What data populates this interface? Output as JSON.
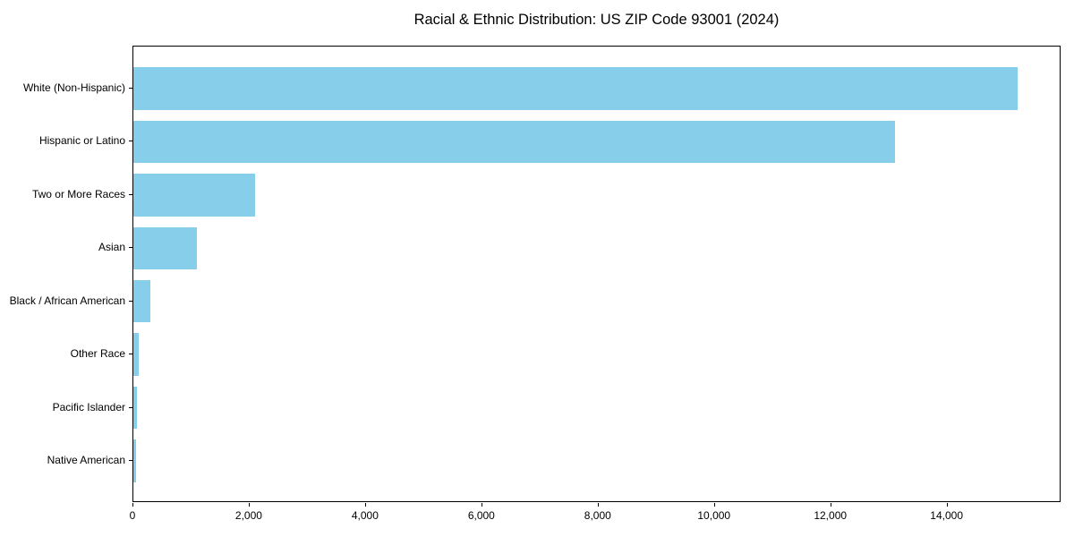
{
  "chart_data": {
    "type": "bar",
    "orientation": "horizontal",
    "title": "Racial & Ethnic Distribution: US ZIP Code 93001 (2024)",
    "categories": [
      "White (Non-Hispanic)",
      "Hispanic or Latino",
      "Two or More Races",
      "Asian",
      "Black / African American",
      "Other Race",
      "Pacific Islander",
      "Native American"
    ],
    "values": [
      15200,
      13100,
      2100,
      1100,
      300,
      100,
      60,
      40
    ],
    "xlabel": "",
    "ylabel": "",
    "xlim": [
      0,
      15960
    ],
    "xticks": [
      0,
      2000,
      4000,
      6000,
      8000,
      10000,
      12000,
      14000
    ],
    "xtick_labels": [
      "0",
      "2,000",
      "4,000",
      "6,000",
      "8,000",
      "10,000",
      "12,000",
      "14,000"
    ],
    "grid": false,
    "legend": null,
    "bar_color": "#87CEEB",
    "frame_color": "#000000",
    "text_color": "#000000",
    "background_color": "#ffffff"
  }
}
